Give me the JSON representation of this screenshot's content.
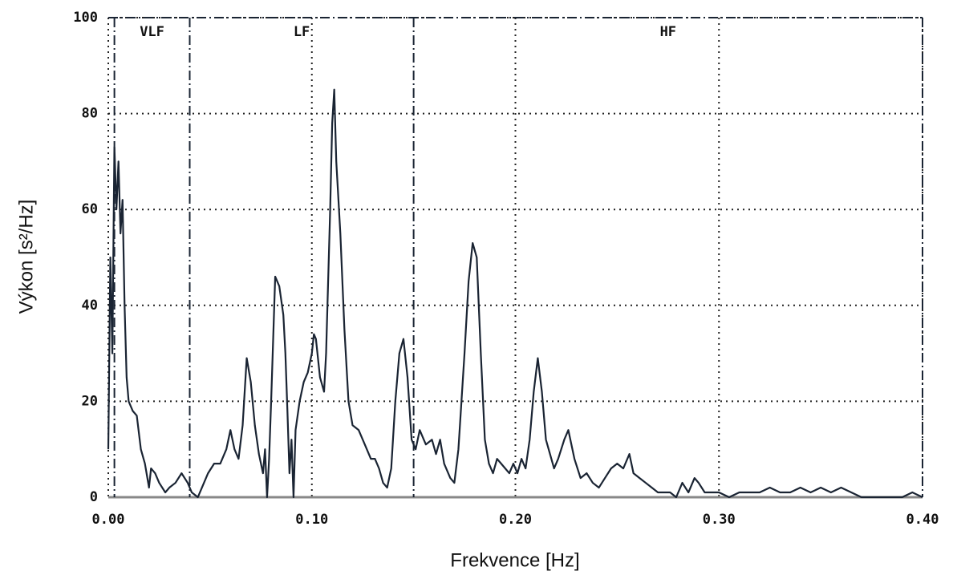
{
  "chart_data": {
    "type": "line",
    "xlabel": "Frekvence [Hz]",
    "ylabel": "Výkon [s²/Hz]",
    "color": "#1a2433",
    "grid": true,
    "xlim": [
      0,
      0.4
    ],
    "ylim": [
      0,
      100
    ],
    "xticks": [
      {
        "value": 0,
        "label": "0.00"
      },
      {
        "value": 0.1,
        "label": "0.10"
      },
      {
        "value": 0.2,
        "label": "0.20"
      },
      {
        "value": 0.3,
        "label": "0.30"
      },
      {
        "value": 0.4,
        "label": "0.40"
      }
    ],
    "yticks": [
      0,
      20,
      40,
      60,
      80,
      100
    ],
    "bands": [
      {
        "label": "VLF",
        "start": 0.003,
        "end": 0.04
      },
      {
        "label": "LF",
        "start": 0.04,
        "end": 0.15
      },
      {
        "label": "HF",
        "start": 0.15,
        "end": 0.4
      }
    ],
    "x": [
      0.0,
      0.001,
      0.002,
      0.003,
      0.004,
      0.005,
      0.006,
      0.007,
      0.008,
      0.009,
      0.01,
      0.012,
      0.014,
      0.016,
      0.018,
      0.02,
      0.021,
      0.023,
      0.025,
      0.028,
      0.03,
      0.033,
      0.036,
      0.039,
      0.041,
      0.044,
      0.046,
      0.049,
      0.052,
      0.055,
      0.058,
      0.06,
      0.062,
      0.064,
      0.066,
      0.068,
      0.07,
      0.072,
      0.074,
      0.076,
      0.077,
      0.078,
      0.079,
      0.08,
      0.082,
      0.084,
      0.086,
      0.087,
      0.088,
      0.089,
      0.09,
      0.091,
      0.092,
      0.094,
      0.096,
      0.098,
      0.1,
      0.101,
      0.102,
      0.104,
      0.106,
      0.107,
      0.109,
      0.11,
      0.111,
      0.112,
      0.114,
      0.116,
      0.118,
      0.12,
      0.123,
      0.126,
      0.129,
      0.131,
      0.133,
      0.135,
      0.137,
      0.139,
      0.141,
      0.143,
      0.145,
      0.147,
      0.149,
      0.151,
      0.153,
      0.156,
      0.159,
      0.161,
      0.163,
      0.165,
      0.168,
      0.17,
      0.172,
      0.175,
      0.177,
      0.179,
      0.181,
      0.183,
      0.185,
      0.187,
      0.189,
      0.191,
      0.193,
      0.195,
      0.197,
      0.199,
      0.201,
      0.203,
      0.205,
      0.207,
      0.209,
      0.211,
      0.213,
      0.215,
      0.217,
      0.219,
      0.221,
      0.224,
      0.226,
      0.229,
      0.232,
      0.235,
      0.238,
      0.241,
      0.244,
      0.247,
      0.25,
      0.253,
      0.256,
      0.258,
      0.261,
      0.264,
      0.267,
      0.27,
      0.273,
      0.276,
      0.279,
      0.282,
      0.285,
      0.288,
      0.29,
      0.293,
      0.296,
      0.3,
      0.305,
      0.31,
      0.315,
      0.32,
      0.325,
      0.33,
      0.335,
      0.34,
      0.345,
      0.35,
      0.355,
      0.36,
      0.365,
      0.37,
      0.375,
      0.38,
      0.385,
      0.39,
      0.395,
      0.4
    ],
    "values": [
      10,
      50,
      30,
      73,
      60,
      70,
      55,
      62,
      40,
      25,
      20,
      18,
      17,
      10,
      7,
      2,
      6,
      5,
      3,
      1,
      2,
      3,
      5,
      3,
      1,
      0,
      2,
      5,
      7,
      7,
      10,
      14,
      10,
      8,
      15,
      29,
      24,
      15,
      9,
      5,
      10,
      0,
      8,
      20,
      46,
      44,
      38,
      30,
      18,
      5,
      12,
      0,
      14,
      20,
      24,
      26,
      30,
      34,
      33,
      25,
      22,
      30,
      60,
      78,
      85,
      70,
      55,
      35,
      20,
      15,
      14,
      11,
      8,
      8,
      6,
      3,
      2,
      6,
      20,
      30,
      33,
      25,
      12,
      10,
      14,
      11,
      12,
      9,
      12,
      7,
      4,
      3,
      10,
      30,
      45,
      53,
      50,
      30,
      12,
      7,
      5,
      8,
      7,
      6,
      5,
      7,
      5,
      8,
      6,
      12,
      22,
      29,
      22,
      12,
      9,
      6,
      8,
      12,
      14,
      8,
      4,
      5,
      3,
      2,
      4,
      6,
      7,
      6,
      9,
      5,
      4,
      3,
      2,
      1,
      1,
      1,
      0,
      3,
      1,
      4,
      3,
      1,
      1,
      1,
      0,
      1,
      1,
      1,
      2,
      1,
      1,
      2,
      1,
      2,
      1,
      2,
      1,
      0,
      0,
      0,
      0,
      0,
      1,
      0
    ]
  }
}
